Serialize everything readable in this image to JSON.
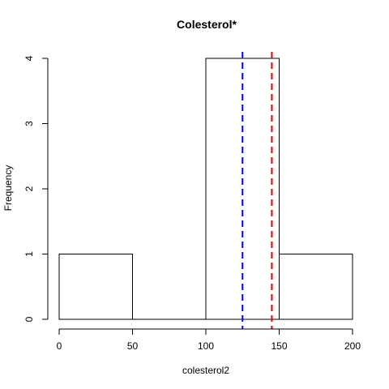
{
  "chart_data": {
    "type": "bar",
    "title": "Colesterol*",
    "xlabel": "colesterol2",
    "ylabel": "Frequency",
    "bins": [
      {
        "x0": 0,
        "x1": 50,
        "count": 1
      },
      {
        "x0": 50,
        "x1": 100,
        "count": 0
      },
      {
        "x0": 100,
        "x1": 150,
        "count": 4
      },
      {
        "x0": 150,
        "x1": 200,
        "count": 1
      }
    ],
    "xlim": [
      0,
      200
    ],
    "ylim": [
      0,
      4
    ],
    "xticks": [
      0,
      50,
      100,
      150,
      200
    ],
    "yticks": [
      0,
      1,
      2,
      3,
      4
    ],
    "reference_lines": [
      {
        "x": 125,
        "color": "#0000ff",
        "style": "dashed"
      },
      {
        "x": 145,
        "color": "#dd0000",
        "style": "dashed"
      }
    ],
    "bar_fill": "#ffffff",
    "bar_stroke": "#000000",
    "grid": false
  }
}
